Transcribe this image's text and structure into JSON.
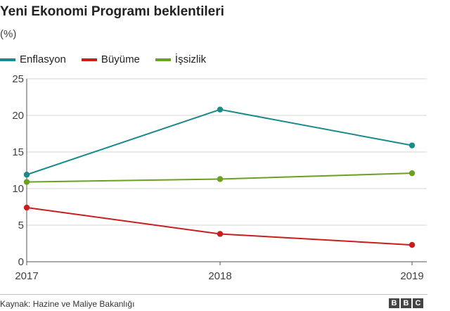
{
  "chart_data": {
    "type": "line",
    "title": "Yeni Ekonomi Programı beklentileri",
    "subtitle": "(%)",
    "x": [
      "2017",
      "2018",
      "2019"
    ],
    "series": [
      {
        "name": "Enflasyon",
        "color": "#1a8a8a",
        "values": [
          11.9,
          20.8,
          15.9
        ]
      },
      {
        "name": "Büyüme",
        "color": "#c81e1e",
        "values": [
          7.4,
          3.8,
          2.3
        ]
      },
      {
        "name": "İşsizlik",
        "color": "#6aa121",
        "values": [
          10.9,
          11.3,
          12.1
        ]
      }
    ],
    "yticks": [
      "25",
      "20",
      "15",
      "10",
      "5",
      "0"
    ],
    "ylim": [
      0,
      25
    ],
    "legend_position": "top-left"
  },
  "footer": {
    "source": "Kaynak: Hazine ve Maliye Bakanlığı",
    "logo_letters": [
      "B",
      "B",
      "C"
    ]
  }
}
